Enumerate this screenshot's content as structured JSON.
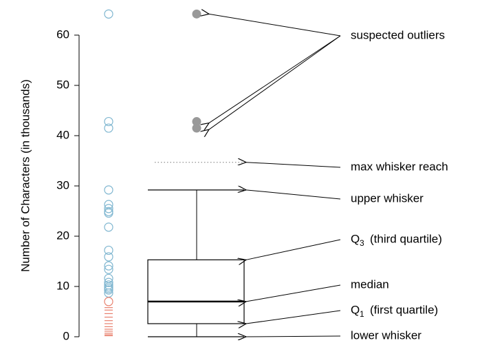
{
  "chart_data": {
    "type": "box",
    "ylabel": "Number of Characters (in thousands)",
    "ylim": [
      0,
      65
    ],
    "yticks": [
      0,
      10,
      20,
      30,
      40,
      50,
      60
    ],
    "box": {
      "lower_whisker": 0,
      "q1": 2.6,
      "median": 7.0,
      "q3": 15.3,
      "upper_whisker": 29.2,
      "max_whisker_reach": 34.7,
      "outliers": [
        64.2,
        42.8,
        41.5
      ],
      "color": "#000000",
      "outlier_color": "#999999"
    },
    "strip": {
      "points": {
        "color": "#7fb6d0",
        "values": [
          64.2,
          42.8,
          41.5,
          29.2,
          26.3,
          25.5,
          24.9,
          24.6,
          21.8,
          17.2,
          15.9,
          14.1,
          13.4,
          11.6,
          10.8,
          10.3,
          9.9,
          9.6,
          9.3,
          8.7
        ]
      },
      "dashes": {
        "color": "#e8806e",
        "values": [
          7.0,
          5.8,
          5.3,
          4.6,
          3.9,
          3.2,
          2.6,
          2.0,
          1.5,
          1.1,
          0.7,
          0.4,
          0.2
        ]
      }
    },
    "labels": {
      "outliers": "suspected outliers",
      "max_whisker_reach": "max whisker reach",
      "upper_whisker": "upper whisker",
      "q3": {
        "symbol": "Q",
        "subscript": "3",
        "text": "(third quartile)"
      },
      "median": "median",
      "q1": {
        "symbol": "Q",
        "subscript": "1",
        "text": "(first quartile)"
      },
      "lower_whisker": "lower whisker"
    }
  }
}
